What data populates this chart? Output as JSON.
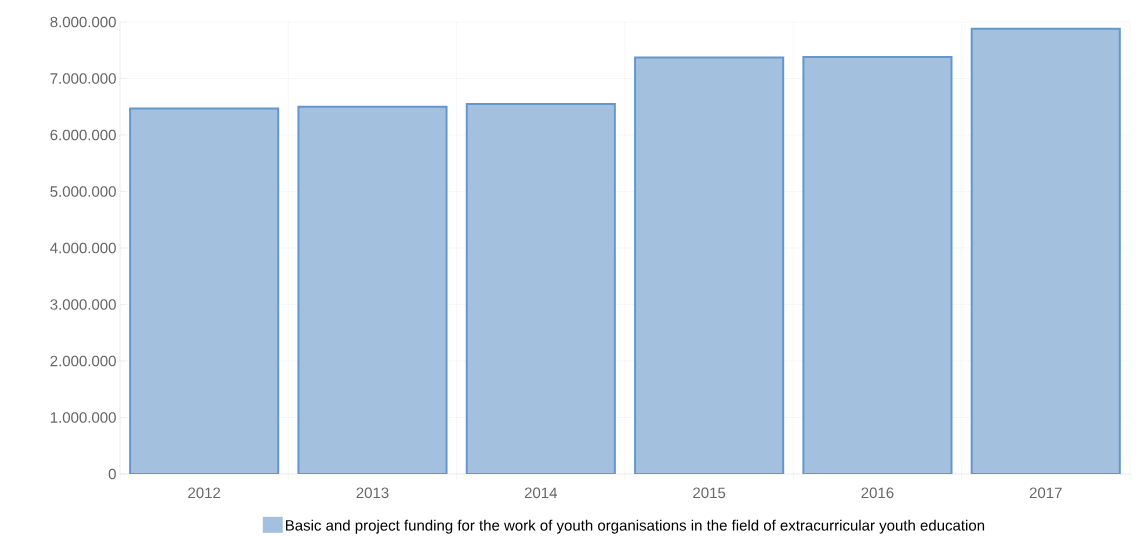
{
  "chart_data": {
    "type": "bar",
    "categories": [
      "2012",
      "2013",
      "2014",
      "2015",
      "2016",
      "2017"
    ],
    "series": [
      {
        "name": "Basic and project funding for the work of youth organisations in the field of extracurricular youth education",
        "color": "#a3c1df",
        "values": [
          6470000,
          6500000,
          6550000,
          7370000,
          7380000,
          7880000
        ]
      }
    ],
    "ylim": [
      0,
      8000000
    ],
    "yticks": [
      {
        "value": 0,
        "label": "0"
      },
      {
        "value": 1000000,
        "label": "1.000.000"
      },
      {
        "value": 2000000,
        "label": "2.000.000"
      },
      {
        "value": 3000000,
        "label": "3.000.000"
      },
      {
        "value": 4000000,
        "label": "4.000.000"
      },
      {
        "value": 5000000,
        "label": "5.000.000"
      },
      {
        "value": 6000000,
        "label": "6.000.000"
      },
      {
        "value": 7000000,
        "label": "7.000.000"
      },
      {
        "value": 8000000,
        "label": "8.000.000"
      }
    ],
    "grid": true,
    "legend": "bottom"
  }
}
